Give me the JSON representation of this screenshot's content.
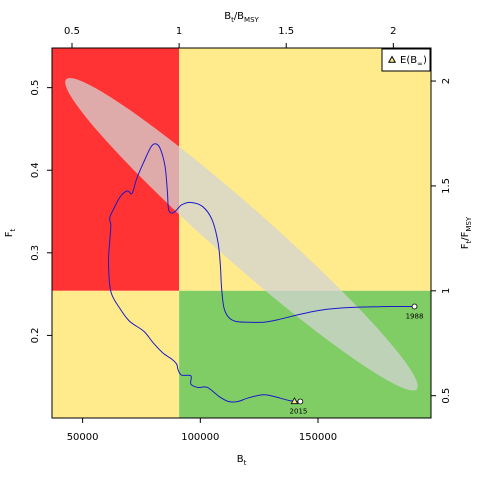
{
  "chart_data": {
    "type": "line",
    "xlabel": "B",
    "xlabel_sub": "t",
    "ylabel": "F",
    "ylabel_sub": "t",
    "top_label": {
      "pre": "B",
      "sub1": "t",
      "mid": "/B",
      "sub2": "MSY"
    },
    "right_label": {
      "pre": "F",
      "sub1": "t",
      "mid": "/F",
      "sub2": "MSY"
    },
    "xlim": [
      37000,
      198000
    ],
    "ylim": [
      0.1,
      0.548
    ],
    "x_ticks": [
      50000,
      100000,
      150000
    ],
    "x_tick_labels": [
      "50000",
      "100000",
      "150000"
    ],
    "y_ticks": [
      0.2,
      0.3,
      0.4,
      0.5
    ],
    "y_tick_labels": [
      "0.2",
      "0.3",
      "0.4",
      "0.5"
    ],
    "Bmsy": 91000,
    "Fmsy": 0.254,
    "top_ticks": [
      0.5,
      1,
      1.5,
      2
    ],
    "top_tick_labels": [
      "0.5",
      "1",
      "1.5",
      "2"
    ],
    "right_ticks": [
      0.5,
      1,
      1.5,
      2
    ],
    "right_tick_labels": [
      "0.5",
      "1",
      "1.5",
      "2"
    ],
    "quadrant_colors": {
      "red": "#ff3333",
      "yellow": "#ffea8c",
      "green": "#80cd66"
    },
    "trajectory_color": "#1a1acc",
    "ellipse_color": "#d3d3d3",
    "trajectory": [
      [
        191000,
        0.235
      ],
      [
        180000,
        0.235
      ],
      [
        165000,
        0.234
      ],
      [
        155000,
        0.232
      ],
      [
        148000,
        0.229
      ],
      [
        140000,
        0.224
      ],
      [
        133000,
        0.219
      ],
      [
        127000,
        0.216
      ],
      [
        120000,
        0.216
      ],
      [
        115000,
        0.217
      ],
      [
        112000,
        0.222
      ],
      [
        110000,
        0.234
      ],
      [
        109000,
        0.259
      ],
      [
        108500,
        0.286
      ],
      [
        107500,
        0.313
      ],
      [
        105000,
        0.34
      ],
      [
        101000,
        0.356
      ],
      [
        96000,
        0.361
      ],
      [
        92000,
        0.358
      ],
      [
        90000,
        0.352
      ],
      [
        88000,
        0.348
      ],
      [
        86500,
        0.353
      ],
      [
        86000,
        0.375
      ],
      [
        85000,
        0.405
      ],
      [
        83000,
        0.426
      ],
      [
        81000,
        0.432
      ],
      [
        79000,
        0.428
      ],
      [
        76000,
        0.41
      ],
      [
        73000,
        0.39
      ],
      [
        71000,
        0.372
      ],
      [
        69000,
        0.375
      ],
      [
        66000,
        0.368
      ],
      [
        63000,
        0.352
      ],
      [
        61500,
        0.342
      ],
      [
        62000,
        0.333
      ],
      [
        61500,
        0.313
      ],
      [
        61000,
        0.288
      ],
      [
        62000,
        0.253
      ],
      [
        66000,
        0.232
      ],
      [
        70000,
        0.217
      ],
      [
        76000,
        0.205
      ],
      [
        80000,
        0.191
      ],
      [
        84000,
        0.179
      ],
      [
        88000,
        0.171
      ],
      [
        90000,
        0.165
      ],
      [
        90500,
        0.159
      ],
      [
        92000,
        0.152
      ],
      [
        96000,
        0.151
      ],
      [
        96000,
        0.141
      ],
      [
        99000,
        0.137
      ],
      [
        103000,
        0.137
      ],
      [
        108000,
        0.126
      ],
      [
        112000,
        0.12
      ],
      [
        116000,
        0.12
      ],
      [
        120000,
        0.124
      ],
      [
        126000,
        0.128
      ],
      [
        130000,
        0.127
      ],
      [
        134000,
        0.124
      ],
      [
        138000,
        0.121
      ],
      [
        142000,
        0.12
      ]
    ],
    "start": {
      "x": 191000,
      "y": 0.235,
      "label": "1988"
    },
    "end": {
      "x": 142500,
      "y": 0.12,
      "label": "2015"
    },
    "expected": {
      "x": 140000,
      "y": 0.12
    },
    "ellipse": {
      "p1": {
        "x": 43000,
        "y": 0.51
      },
      "p2": {
        "x": 192000,
        "y": 0.135
      },
      "halfwidth": 0.06
    },
    "legend": {
      "label": "E(B",
      "sub": "∞",
      "close": ")",
      "position": "top-right"
    }
  }
}
